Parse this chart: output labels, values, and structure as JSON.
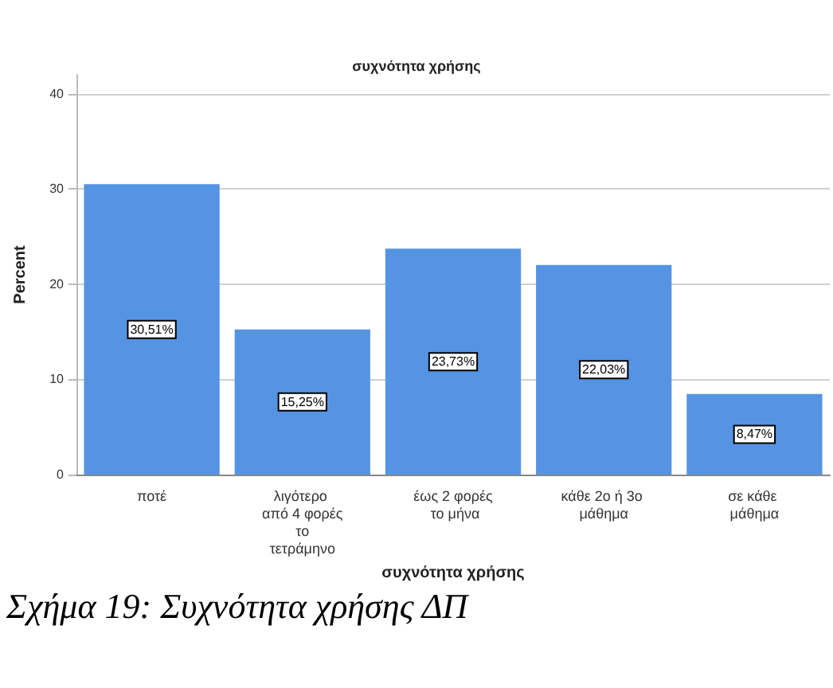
{
  "chart_data": {
    "type": "bar",
    "title": "συχνότητα χρήσης",
    "xlabel": "συχνότητα χρήσης",
    "ylabel": "Percent",
    "categories": [
      "ποτέ",
      "λιγότερο από 4 φορές το τετράμηνο",
      "έως 2 φορές το μήνα",
      "κάθε 2ο ή 3ο μάθημα",
      "σε κάθε μάθημα"
    ],
    "values": [
      30.51,
      15.25,
      23.73,
      22.03,
      8.47
    ],
    "value_labels": [
      "30,51%",
      "15,25%",
      "23,73%",
      "22,03%",
      "8,47%"
    ],
    "color": "#5594e2",
    "ylim": [
      0,
      42
    ],
    "yticks": [
      0,
      10,
      20,
      30,
      40
    ],
    "grid": "y",
    "annotations": [
      "Σχήμα 19: Συχνότητα χρήσης ΔΠ"
    ]
  }
}
